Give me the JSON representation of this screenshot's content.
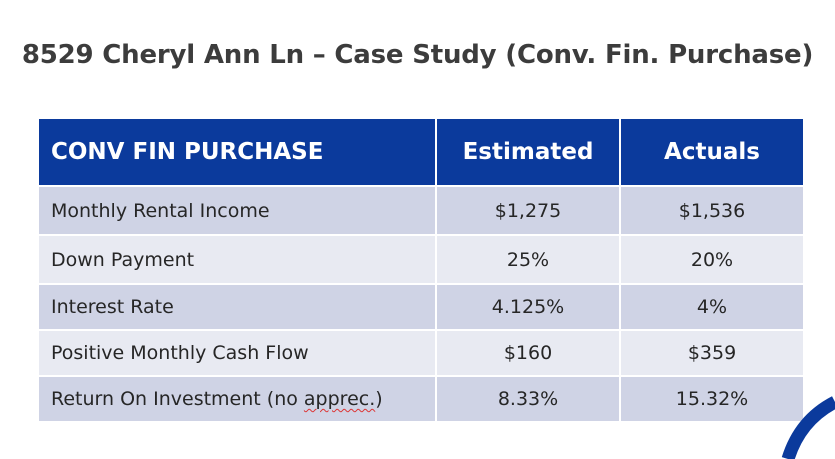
{
  "title": "8529 Cheryl Ann Ln – Case Study (Conv. Fin. Purchase)",
  "table": {
    "headers": [
      "CONV FIN PURCHASE",
      "Estimated",
      "Actuals"
    ],
    "rows": [
      {
        "label": "Monthly Rental Income",
        "estimated": "$1,275",
        "actual": "$1,536"
      },
      {
        "label": "Down Payment",
        "estimated": "25%",
        "actual": "20%"
      },
      {
        "label": "Interest Rate",
        "estimated": "4.125%",
        "actual": "4%"
      },
      {
        "label": "Positive Monthly Cash Flow",
        "estimated": "$160",
        "actual": "$359"
      },
      {
        "label_prefix": "Return On Investment (no ",
        "label_flagged": "apprec.",
        "label_suffix": ")",
        "estimated": "8.33%",
        "actual": "15.32%"
      }
    ]
  },
  "colors": {
    "header_bg": "#0b3a9c",
    "row_dark": "#cfd3e5",
    "row_light": "#e8eaf2",
    "accent_arc": "#0b3a9c"
  }
}
